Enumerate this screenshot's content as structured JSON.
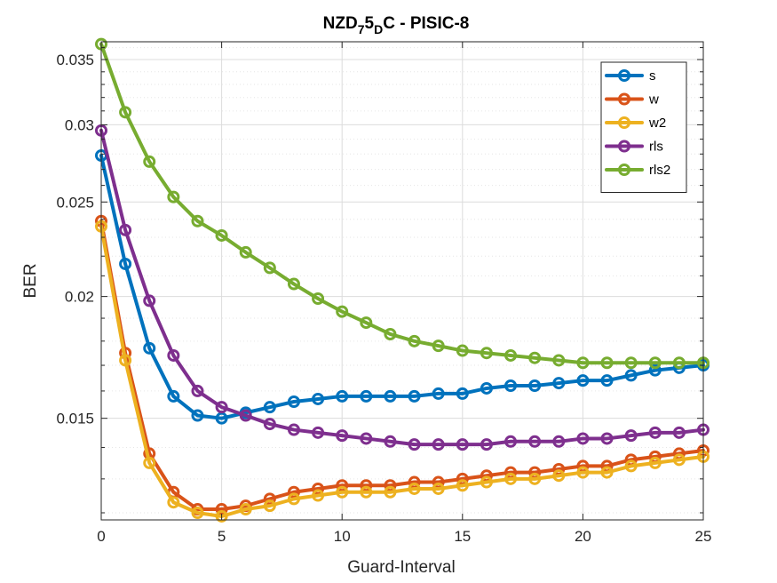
{
  "chart_data": {
    "type": "line",
    "title": {
      "base": "NZD",
      "sub1": "7",
      "mid": "5",
      "sub2": "D",
      "rest": "C - PISIC-8"
    },
    "xlabel": "Guard-Interval",
    "ylabel": "BER",
    "xlim": [
      0,
      25
    ],
    "ylim": [
      0.0118,
      0.0365
    ],
    "y_scale": "log",
    "x_ticks": [
      0,
      5,
      10,
      15,
      20,
      25
    ],
    "y_ticks": [
      0.015,
      0.02,
      0.025,
      0.03,
      0.035
    ],
    "y_tick_labels": [
      "0.015",
      "0.02",
      "0.025",
      "0.03",
      "0.035"
    ],
    "grid": true,
    "legend_position": "top-right",
    "x": [
      0,
      1,
      2,
      3,
      4,
      5,
      6,
      7,
      8,
      9,
      10,
      11,
      12,
      13,
      14,
      15,
      16,
      17,
      18,
      19,
      20,
      21,
      22,
      23,
      24,
      25
    ],
    "series": [
      {
        "name": "s",
        "color": "#0072BD",
        "values": [
          0.0279,
          0.0216,
          0.0177,
          0.0158,
          0.0151,
          0.015,
          0.0152,
          0.0154,
          0.0156,
          0.0157,
          0.0158,
          0.0158,
          0.0158,
          0.0158,
          0.0159,
          0.0159,
          0.0161,
          0.0162,
          0.0162,
          0.0163,
          0.0164,
          0.0164,
          0.0166,
          0.0168,
          0.0169,
          0.017
        ]
      },
      {
        "name": "w",
        "color": "#D95319",
        "values": [
          0.0239,
          0.0175,
          0.0138,
          0.0126,
          0.0121,
          0.0121,
          0.0122,
          0.0124,
          0.0126,
          0.0127,
          0.0128,
          0.0128,
          0.0128,
          0.0129,
          0.0129,
          0.013,
          0.0131,
          0.0132,
          0.0132,
          0.0133,
          0.0134,
          0.0134,
          0.0136,
          0.0137,
          0.0138,
          0.0139
        ]
      },
      {
        "name": "w2",
        "color": "#EDB120",
        "values": [
          0.0236,
          0.0172,
          0.0135,
          0.0123,
          0.012,
          0.0119,
          0.0121,
          0.0122,
          0.0124,
          0.0125,
          0.0126,
          0.0126,
          0.0126,
          0.0127,
          0.0127,
          0.0128,
          0.0129,
          0.013,
          0.013,
          0.0131,
          0.0132,
          0.0132,
          0.0134,
          0.0135,
          0.0136,
          0.0137
        ]
      },
      {
        "name": "rls",
        "color": "#7E2F8E",
        "values": [
          0.0296,
          0.0234,
          0.0198,
          0.0174,
          0.016,
          0.0154,
          0.0151,
          0.0148,
          0.0146,
          0.0145,
          0.0144,
          0.0143,
          0.0142,
          0.0141,
          0.0141,
          0.0141,
          0.0141,
          0.0142,
          0.0142,
          0.0142,
          0.0143,
          0.0143,
          0.0144,
          0.0145,
          0.0145,
          0.0146
        ]
      },
      {
        "name": "rls2",
        "color": "#77AC30",
        "values": [
          0.0363,
          0.0309,
          0.0275,
          0.0253,
          0.0239,
          0.0231,
          0.0222,
          0.0214,
          0.0206,
          0.0199,
          0.0193,
          0.0188,
          0.0183,
          0.018,
          0.0178,
          0.0176,
          0.0175,
          0.0174,
          0.0173,
          0.0172,
          0.0171,
          0.0171,
          0.0171,
          0.0171,
          0.0171,
          0.0171
        ]
      }
    ]
  }
}
